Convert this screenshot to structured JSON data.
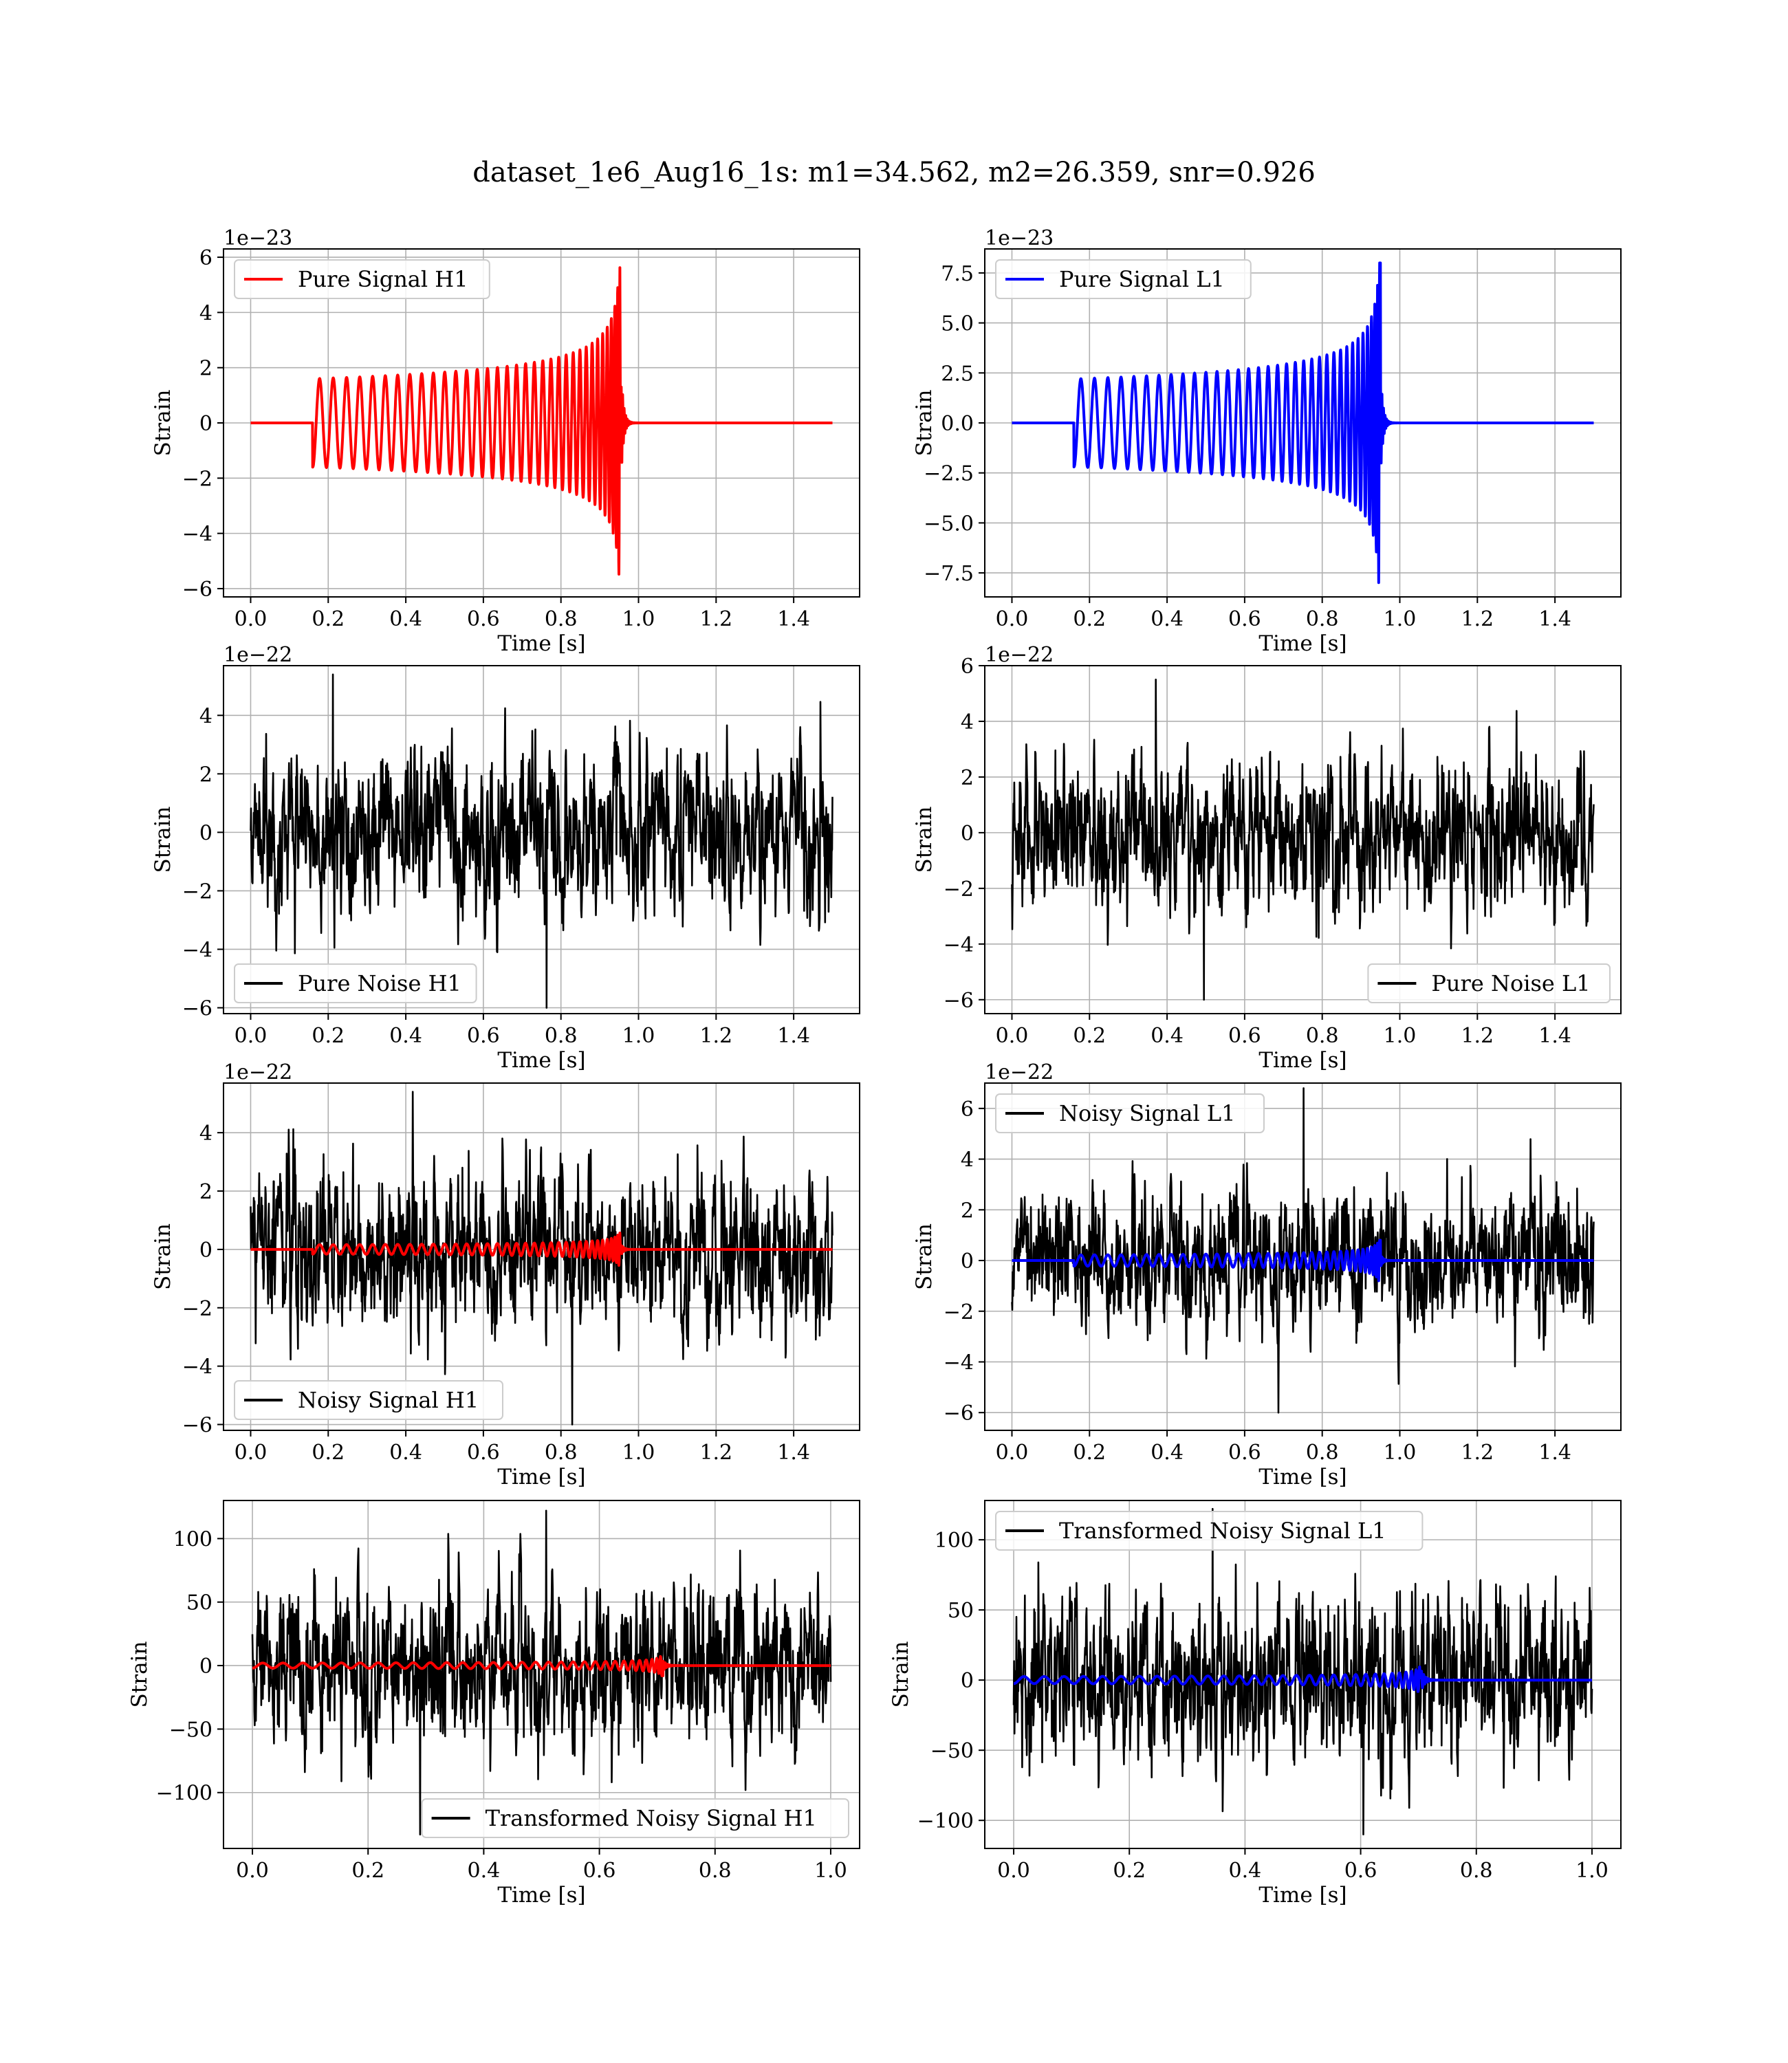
{
  "figure": {
    "title": "dataset_1e6_Aug16_1s: m1=34.562, m2=26.359, snr=0.926"
  },
  "chart_data": [
    {
      "id": "pure-signal-h1",
      "type": "line",
      "xlabel": "Time [s]",
      "ylabel": "Strain",
      "offset_text": "1e−23",
      "xlim": [
        -0.07,
        1.57
      ],
      "ylim": [
        -6.3,
        6.3
      ],
      "xticks": [
        0.0,
        0.2,
        0.4,
        0.6,
        0.8,
        1.0,
        1.2,
        1.4
      ],
      "xtick_labels": [
        "0.0",
        "0.2",
        "0.4",
        "0.6",
        "0.8",
        "1.0",
        "1.2",
        "1.4"
      ],
      "yticks": [
        -6,
        -4,
        -2,
        0,
        2,
        4,
        6
      ],
      "ytick_labels": [
        "−6",
        "−4",
        "−2",
        "0",
        "2",
        "4",
        "6"
      ],
      "legend_position": "upper-left",
      "grid": true,
      "series": [
        {
          "name": "Pure Signal H1",
          "color": "#ff0000",
          "kind": "chirp",
          "x_range": [
            0.0,
            1.5
          ],
          "onset": 0.16,
          "merger": 0.955,
          "amp_start": 1.6,
          "amp_peak": 5.7
        }
      ]
    },
    {
      "id": "pure-signal-l1",
      "type": "line",
      "xlabel": "Time [s]",
      "ylabel": "Strain",
      "offset_text": "1e−23",
      "xlim": [
        -0.07,
        1.57
      ],
      "ylim": [
        -8.7,
        8.7
      ],
      "xticks": [
        0.0,
        0.2,
        0.4,
        0.6,
        0.8,
        1.0,
        1.2,
        1.4
      ],
      "xtick_labels": [
        "0.0",
        "0.2",
        "0.4",
        "0.6",
        "0.8",
        "1.0",
        "1.2",
        "1.4"
      ],
      "yticks": [
        -7.5,
        -5.0,
        -2.5,
        0.0,
        2.5,
        5.0,
        7.5
      ],
      "ytick_labels": [
        "−7.5",
        "−5.0",
        "−2.5",
        "0.0",
        "2.5",
        "5.0",
        "7.5"
      ],
      "legend_position": "upper-left",
      "grid": true,
      "series": [
        {
          "name": "Pure Signal L1",
          "color": "#0000ff",
          "kind": "chirp",
          "x_range": [
            0.0,
            1.5
          ],
          "onset": 0.16,
          "merger": 0.95,
          "amp_start": 2.2,
          "amp_peak": 8.0
        }
      ]
    },
    {
      "id": "pure-noise-h1",
      "type": "line",
      "xlabel": "Time [s]",
      "ylabel": "Strain",
      "offset_text": "1e−22",
      "xlim": [
        -0.07,
        1.57
      ],
      "ylim": [
        -6.2,
        5.7
      ],
      "xticks": [
        0.0,
        0.2,
        0.4,
        0.6,
        0.8,
        1.0,
        1.2,
        1.4
      ],
      "xtick_labels": [
        "0.0",
        "0.2",
        "0.4",
        "0.6",
        "0.8",
        "1.0",
        "1.2",
        "1.4"
      ],
      "yticks": [
        -6,
        -4,
        -2,
        0,
        2,
        4
      ],
      "ytick_labels": [
        "−6",
        "−4",
        "−2",
        "0",
        "2",
        "4"
      ],
      "legend_position": "lower-left",
      "grid": true,
      "series": [
        {
          "name": "Pure Noise H1",
          "color": "#000000",
          "kind": "noise",
          "x_range": [
            0.0,
            1.5
          ],
          "scale": 1.35,
          "peak_max": 5.4,
          "peak_min": -6.0
        }
      ]
    },
    {
      "id": "pure-noise-l1",
      "type": "line",
      "xlabel": "Time [s]",
      "ylabel": "Strain",
      "offset_text": "1e−22",
      "xlim": [
        -0.07,
        1.57
      ],
      "ylim": [
        -6.5,
        6.0
      ],
      "xticks": [
        0.0,
        0.2,
        0.4,
        0.6,
        0.8,
        1.0,
        1.2,
        1.4
      ],
      "xtick_labels": [
        "0.0",
        "0.2",
        "0.4",
        "0.6",
        "0.8",
        "1.0",
        "1.2",
        "1.4"
      ],
      "yticks": [
        -6,
        -4,
        -2,
        0,
        2,
        4,
        6
      ],
      "ytick_labels": [
        "−6",
        "−4",
        "−2",
        "0",
        "2",
        "4",
        "6"
      ],
      "legend_position": "lower-right",
      "grid": true,
      "series": [
        {
          "name": "Pure Noise L1",
          "color": "#000000",
          "kind": "noise",
          "x_range": [
            0.0,
            1.5
          ],
          "scale": 1.35,
          "peak_max": 5.5,
          "peak_min": -6.0
        }
      ]
    },
    {
      "id": "noisy-signal-h1",
      "type": "line",
      "xlabel": "Time [s]",
      "ylabel": "Strain",
      "offset_text": "1e−22",
      "xlim": [
        -0.07,
        1.57
      ],
      "ylim": [
        -6.2,
        5.7
      ],
      "xticks": [
        0.0,
        0.2,
        0.4,
        0.6,
        0.8,
        1.0,
        1.2,
        1.4
      ],
      "xtick_labels": [
        "0.0",
        "0.2",
        "0.4",
        "0.6",
        "0.8",
        "1.0",
        "1.2",
        "1.4"
      ],
      "yticks": [
        -6,
        -4,
        -2,
        0,
        2,
        4
      ],
      "ytick_labels": [
        "−6",
        "−4",
        "−2",
        "0",
        "2",
        "4"
      ],
      "legend_position": "lower-left",
      "grid": true,
      "series": [
        {
          "name": "Noisy Signal H1",
          "color": "#000000",
          "kind": "noise",
          "x_range": [
            0.0,
            1.5
          ],
          "scale": 1.35,
          "peak_max": 5.4,
          "peak_min": -6.0
        },
        {
          "color": "#ff0000",
          "kind": "chirp",
          "x_range": [
            0.0,
            1.5
          ],
          "onset": 0.16,
          "merger": 0.955,
          "amp_start": 0.16,
          "amp_peak": 0.57
        }
      ]
    },
    {
      "id": "noisy-signal-l1",
      "type": "line",
      "xlabel": "Time [s]",
      "ylabel": "Strain",
      "offset_text": "1e−22",
      "xlim": [
        -0.07,
        1.57
      ],
      "ylim": [
        -6.7,
        7.0
      ],
      "xticks": [
        0.0,
        0.2,
        0.4,
        0.6,
        0.8,
        1.0,
        1.2,
        1.4
      ],
      "xtick_labels": [
        "0.0",
        "0.2",
        "0.4",
        "0.6",
        "0.8",
        "1.0",
        "1.2",
        "1.4"
      ],
      "yticks": [
        -6,
        -4,
        -2,
        0,
        2,
        4,
        6
      ],
      "ytick_labels": [
        "−6",
        "−4",
        "−2",
        "0",
        "2",
        "4",
        "6"
      ],
      "legend_position": "upper-left",
      "grid": true,
      "series": [
        {
          "name": "Noisy Signal L1",
          "color": "#000000",
          "kind": "noise",
          "x_range": [
            0.0,
            1.5
          ],
          "scale": 1.35,
          "peak_max": 6.8,
          "peak_min": -6.0
        },
        {
          "color": "#0000ff",
          "kind": "chirp",
          "x_range": [
            0.0,
            1.5
          ],
          "onset": 0.16,
          "merger": 0.95,
          "amp_start": 0.22,
          "amp_peak": 0.8
        }
      ]
    },
    {
      "id": "transformed-noisy-signal-h1",
      "type": "line",
      "xlabel": "Time [s]",
      "ylabel": "Strain",
      "offset_text": "",
      "xlim": [
        -0.05,
        1.05
      ],
      "ylim": [
        -144,
        130
      ],
      "xticks": [
        0.0,
        0.2,
        0.4,
        0.6,
        0.8,
        1.0
      ],
      "xtick_labels": [
        "0.0",
        "0.2",
        "0.4",
        "0.6",
        "0.8",
        "1.0"
      ],
      "yticks": [
        -100,
        -50,
        0,
        50,
        100
      ],
      "ytick_labels": [
        "−100",
        "−50",
        "0",
        "50",
        "100"
      ],
      "legend_position": "lower-right",
      "grid": true,
      "series": [
        {
          "name": "Transformed Noisy Signal H1",
          "color": "#000000",
          "kind": "noise",
          "x_range": [
            0.0,
            1.0
          ],
          "scale": 30,
          "peak_max": 122,
          "peak_min": -133
        },
        {
          "color": "#ff0000",
          "kind": "chirp",
          "x_range": [
            0.0,
            1.0
          ],
          "onset": 0.0,
          "merger": 0.71,
          "amp_start": 2.0,
          "amp_peak": 12.0
        }
      ]
    },
    {
      "id": "transformed-noisy-signal-l1",
      "type": "line",
      "xlabel": "Time [s]",
      "ylabel": "Strain",
      "offset_text": "",
      "xlim": [
        -0.05,
        1.05
      ],
      "ylim": [
        -120,
        128
      ],
      "xticks": [
        0.0,
        0.2,
        0.4,
        0.6,
        0.8,
        1.0
      ],
      "xtick_labels": [
        "0.0",
        "0.2",
        "0.4",
        "0.6",
        "0.8",
        "1.0"
      ],
      "yticks": [
        -100,
        -50,
        0,
        50,
        100
      ],
      "ytick_labels": [
        "−100",
        "−50",
        "0",
        "50",
        "100"
      ],
      "legend_position": "upper-left",
      "grid": true,
      "series": [
        {
          "name": "Transformed Noisy Signal L1",
          "color": "#000000",
          "kind": "noise",
          "x_range": [
            0.0,
            1.0
          ],
          "scale": 30,
          "peak_max": 122,
          "peak_min": -110
        },
        {
          "color": "#0000ff",
          "kind": "chirp",
          "x_range": [
            0.0,
            1.0
          ],
          "onset": 0.0,
          "merger": 0.705,
          "amp_start": 2.5,
          "amp_peak": 22.0
        }
      ]
    }
  ]
}
